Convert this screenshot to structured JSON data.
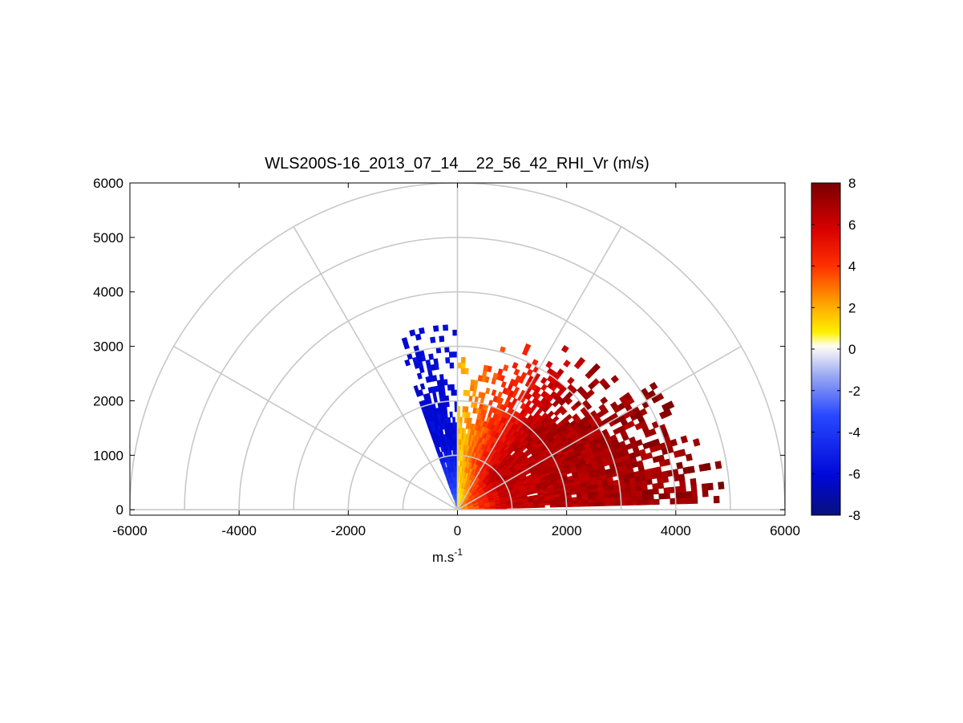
{
  "chart_data": {
    "type": "heatmap",
    "subtype": "polar-sector RHI scan",
    "title": "WLS200S-16_2013_07_14__22_56_42_RHI_Vr (m/s)",
    "xlabel_base": "m.s",
    "xlabel_exp": "-1",
    "ylabel": "",
    "xlim": [
      -6000,
      6000
    ],
    "ylim": [
      -100,
      6000
    ],
    "x_ticks": [
      -6000,
      -4000,
      -2000,
      0,
      2000,
      4000,
      6000
    ],
    "x_tick_labels": [
      "-6000",
      "-4000",
      "-2000",
      "0",
      "2000",
      "4000",
      "6000"
    ],
    "y_ticks": [
      0,
      1000,
      2000,
      3000,
      4000,
      5000,
      6000
    ],
    "y_tick_labels": [
      "0",
      "1000",
      "2000",
      "3000",
      "4000",
      "5000",
      "6000"
    ],
    "polar_grid": {
      "range_rings": [
        1000,
        2000,
        3000,
        4000,
        5000,
        6000
      ],
      "spoke_angles_deg": [
        0,
        30,
        60,
        90,
        120,
        150,
        180
      ],
      "grid": true
    },
    "colorbar": {
      "min": -8,
      "max": 8,
      "ticks": [
        8,
        6,
        4,
        2,
        0,
        -2,
        -4,
        -6,
        -8
      ],
      "tick_labels": [
        "8",
        "6",
        "4",
        "2",
        "0",
        "-2",
        "-4",
        "-6",
        "-8"
      ],
      "colormap": "blue-white-yellow-red",
      "placement": "right"
    },
    "field": {
      "variable": "radial velocity",
      "units": "m/s",
      "left_sector": {
        "elevation_deg": [
          4,
          110
        ],
        "typical_value": -6,
        "near_range_value": -2
      },
      "right_sector": {
        "elevation_deg": [
          0,
          90
        ],
        "typical_value": 6,
        "near_vertical_value": 1.5,
        "far_range_value": 7.5
      }
    }
  },
  "colors": {
    "grid": "#c8c8c8",
    "axes": "#000000",
    "background": "#ffffff"
  }
}
